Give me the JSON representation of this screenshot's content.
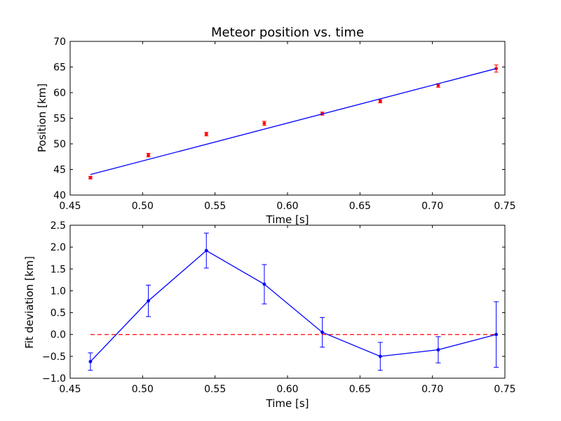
{
  "chart_data": [
    {
      "type": "scatter",
      "title": "Meteor position vs. time",
      "xlabel": "Time [s]",
      "ylabel": "Position [km]",
      "xlim": [
        0.45,
        0.75
      ],
      "ylim": [
        40,
        70
      ],
      "xticks": [
        "0.45",
        "0.50",
        "0.55",
        "0.60",
        "0.65",
        "0.70",
        "0.75"
      ],
      "yticks": [
        "40",
        "45",
        "50",
        "55",
        "60",
        "65",
        "70"
      ],
      "grid": false,
      "series": [
        {
          "kind": "errorbar-points",
          "color": "#ff0000",
          "x": [
            0.464,
            0.504,
            0.544,
            0.584,
            0.624,
            0.664,
            0.704,
            0.744
          ],
          "y": [
            43.4,
            47.8,
            51.9,
            54.0,
            55.9,
            58.3,
            61.4,
            64.7
          ],
          "yerr": [
            0.25,
            0.35,
            0.35,
            0.4,
            0.3,
            0.3,
            0.35,
            0.7
          ]
        },
        {
          "kind": "fit-line",
          "color": "#0000ff",
          "x": [
            0.464,
            0.744
          ],
          "y": [
            44.0,
            64.7
          ]
        }
      ]
    },
    {
      "type": "line",
      "title": "",
      "xlabel": "Time [s]",
      "ylabel": "Fit deviation [km]",
      "xlim": [
        0.45,
        0.75
      ],
      "ylim": [
        -1.0,
        2.5
      ],
      "xticks": [
        "0.45",
        "0.50",
        "0.55",
        "0.60",
        "0.65",
        "0.70",
        "0.75"
      ],
      "yticks": [
        "−1.0",
        "−0.5",
        "0.0",
        "0.5",
        "1.0",
        "1.5",
        "2.0",
        "2.5"
      ],
      "grid": false,
      "series": [
        {
          "kind": "errorbar-line",
          "color": "#0000ff",
          "x": [
            0.464,
            0.504,
            0.544,
            0.584,
            0.624,
            0.664,
            0.704,
            0.744
          ],
          "y": [
            -0.62,
            0.77,
            1.92,
            1.15,
            0.05,
            -0.5,
            -0.35,
            0.0
          ],
          "yerr": [
            0.2,
            0.36,
            0.4,
            0.45,
            0.34,
            0.32,
            0.3,
            0.75
          ]
        },
        {
          "kind": "reference-line",
          "color": "#ff0000",
          "style": "dashed",
          "x": [
            0.464,
            0.744
          ],
          "y": [
            0.0,
            0.0
          ]
        }
      ]
    }
  ]
}
